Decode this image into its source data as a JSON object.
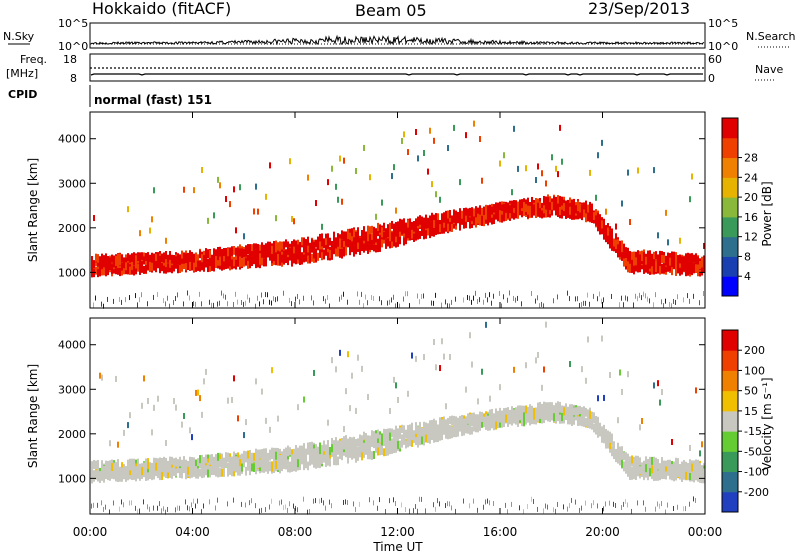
{
  "header": {
    "station": "Hokkaido (fitACF)",
    "beam": "Beam 05",
    "date": "23/Sep/2013"
  },
  "panels": {
    "nsky": {
      "label": "N.Sky",
      "tick_top_left": "10^5",
      "tick_bottom_left": "10^0",
      "tick_top_right": "10^5",
      "tick_bottom_right": "10^0",
      "right_label": "N.Search"
    },
    "freq": {
      "label": "Freq.",
      "unit": "[MHz]",
      "tick_top_left": "18",
      "tick_bottom_left": "8",
      "tick_top_right": "60",
      "tick_bottom_right": "0",
      "right_label": "Nave"
    },
    "cpid": {
      "label": "CPID",
      "text": "normal (fast) 151"
    }
  },
  "chart_data": [
    {
      "type": "heatmap",
      "ylabel": "Slant Range [km]",
      "yticks": [
        1000,
        2000,
        3000,
        4000
      ],
      "ylim": [
        200,
        4600
      ],
      "xlim": [
        0,
        24
      ],
      "colorbar": {
        "label": "Power [dB]",
        "ticks": [
          "4",
          "8",
          "12",
          "16",
          "20",
          "24",
          "28"
        ],
        "colors": [
          "#0000ff",
          "#1a3fb0",
          "#2e6f8e",
          "#3a9a5a",
          "#8ab83a",
          "#e6b400",
          "#f08000",
          "#f04000",
          "#e00000"
        ]
      },
      "bands": [
        {
          "t": [
            0,
            4,
            8,
            11,
            14,
            16,
            18,
            19.5,
            21,
            24
          ],
          "center": [
            1150,
            1250,
            1450,
            1750,
            2150,
            2350,
            2500,
            2350,
            1250,
            1150
          ],
          "width": [
            350,
            350,
            450,
            500,
            350,
            300,
            350,
            300,
            400,
            350
          ]
        }
      ]
    },
    {
      "type": "heatmap",
      "ylabel": "Slant Range [km]",
      "yticks": [
        1000,
        2000,
        3000,
        4000
      ],
      "ylim": [
        200,
        4600
      ],
      "xlim": [
        0,
        24
      ],
      "colorbar": {
        "label": "Velocity [m s⁻¹]",
        "ticks": [
          "200",
          "100",
          "50",
          "15",
          "-15",
          "-50",
          "-100",
          "-200"
        ],
        "colors": [
          "#2040c0",
          "#2e6f8e",
          "#3a9a5a",
          "#66cc33",
          "#c8c8c0",
          "#f0c000",
          "#f08000",
          "#f04000",
          "#e00000"
        ]
      }
    }
  ],
  "x_axis": {
    "ticks": [
      "00:00",
      "04:00",
      "08:00",
      "12:00",
      "16:00",
      "20:00",
      "00:00"
    ],
    "label": "Time UT"
  }
}
